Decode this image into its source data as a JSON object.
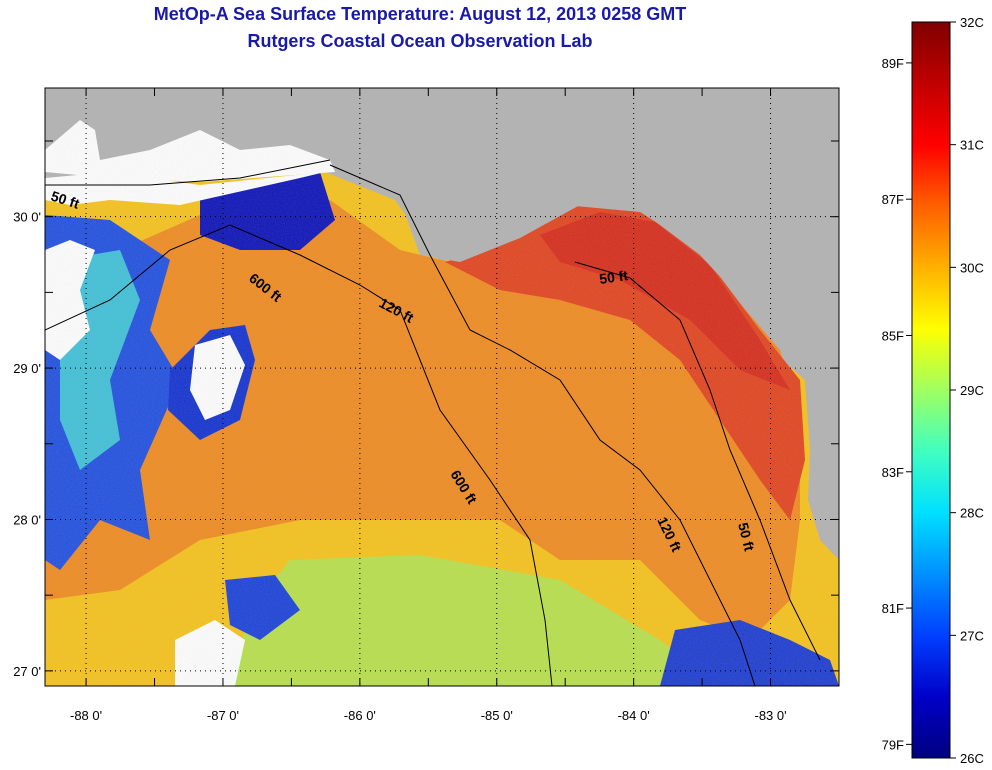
{
  "title": {
    "line1": "MetOp-A Sea Surface Temperature:  August 12, 2013 0258 GMT",
    "line2": "Rutgers Coastal Ocean Observation Lab"
  },
  "map": {
    "lon_range": [
      -88.3,
      -82.5
    ],
    "lat_range": [
      26.9,
      30.85
    ],
    "lon_ticks": [
      {
        "value": -88,
        "label": "-88 0'"
      },
      {
        "value": -87,
        "label": "-87 0'"
      },
      {
        "value": -86,
        "label": "-86 0'"
      },
      {
        "value": -85,
        "label": "-85 0'"
      },
      {
        "value": -84,
        "label": "-84 0'"
      },
      {
        "value": -83,
        "label": "-83 0'"
      }
    ],
    "lat_ticks": [
      {
        "value": 30,
        "label": "30 0'"
      },
      {
        "value": 29,
        "label": "29 0'"
      },
      {
        "value": 28,
        "label": "28 0'"
      },
      {
        "value": 27,
        "label": "27 0'"
      }
    ],
    "grid": "dotted",
    "land_color": "#b2b2b2",
    "contour_labels": [
      "50 ft",
      "600 ft",
      "120 ft",
      "50 ft",
      "600 ft",
      "120 ft",
      "50 ft"
    ]
  },
  "colorbar": {
    "range_c": [
      26,
      32
    ],
    "colors": [
      "#000080",
      "#0000c8",
      "#0040ff",
      "#0090ff",
      "#00e0ff",
      "#40ffc0",
      "#a0ff60",
      "#ffff00",
      "#ffb000",
      "#ff6000",
      "#ff0000",
      "#c00000",
      "#800000"
    ],
    "celsius_labels": [
      {
        "value": 32,
        "label": "32C"
      },
      {
        "value": 31,
        "label": "31C"
      },
      {
        "value": 30,
        "label": "30C"
      },
      {
        "value": 29,
        "label": "29C"
      },
      {
        "value": 28,
        "label": "28C"
      },
      {
        "value": 27,
        "label": "27C"
      },
      {
        "value": 26,
        "label": "26C"
      }
    ],
    "fahrenheit_labels": [
      {
        "value": 89,
        "label": "89F"
      },
      {
        "value": 87,
        "label": "87F"
      },
      {
        "value": 85,
        "label": "85F"
      },
      {
        "value": 83,
        "label": "83F"
      },
      {
        "value": 81,
        "label": "81F"
      },
      {
        "value": 79,
        "label": "79F"
      }
    ]
  }
}
